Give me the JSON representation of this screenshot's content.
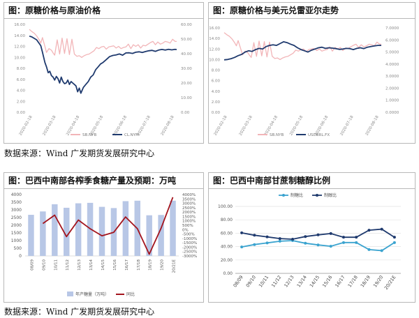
{
  "sources": {
    "top": "数据来源：Wind 广发期货发展研究中心",
    "bottom": "数据来源：Wind 广发期货发展研究中心"
  },
  "chart_data": [
    {
      "title": "图：原糖价格与原油价格",
      "type": "line",
      "x_ticks": [
        "2020-02-18",
        "2020-03-18",
        "2020-04-18",
        "2020-05-18",
        "2020-06-18",
        "2020-07-18",
        "2020-08-18"
      ],
      "y_left_ticks": [
        "0.00",
        "2.00",
        "4.00",
        "6.00",
        "8.00",
        "10.00",
        "12.00",
        "14.00",
        "16.00"
      ],
      "y_right_ticks": [
        "0.00",
        "10.00",
        "20.00",
        "30.00",
        "40.00",
        "50.00",
        "60.00"
      ],
      "ylim_left": [
        0,
        16
      ],
      "ylim_right": [
        0,
        60
      ],
      "series": [
        {
          "name": "SB.NYB",
          "axis": "left",
          "color": "#f2b5b8",
          "x": [
            0,
            3,
            6,
            9,
            12,
            14,
            16,
            19,
            21,
            24,
            27,
            29,
            31,
            34,
            37,
            40,
            43,
            46,
            49,
            52,
            55,
            58,
            61,
            64,
            67,
            70,
            73,
            76,
            79,
            82,
            85,
            88,
            91,
            94,
            97,
            100,
            103,
            106,
            109,
            112,
            115,
            118,
            121,
            124,
            127,
            130,
            133,
            136,
            139,
            142,
            145,
            148,
            151,
            154,
            157,
            160,
            163,
            166,
            169,
            172,
            175,
            178,
            180
          ],
          "values": [
            15.1,
            14.7,
            14.4,
            13.9,
            13.2,
            12.6,
            13.6,
            12.0,
            10.9,
            11.6,
            11.3,
            10.8,
            10.4,
            13.2,
            10.6,
            13.5,
            10.7,
            13.4,
            10.5,
            13.3,
            10.6,
            10.2,
            10.3,
            10.0,
            10.3,
            10.5,
            10.6,
            10.9,
            11.2,
            11.8,
            11.6,
            11.9,
            12.0,
            11.5,
            11.9,
            12.0,
            12.1,
            11.7,
            12.0,
            11.6,
            11.8,
            11.9,
            12.4,
            11.6,
            12.3,
            12.0,
            12.3,
            11.7,
            12.2,
            12.1,
            12.4,
            12.7,
            12.9,
            12.3,
            12.8,
            12.4,
            12.6,
            12.9,
            12.8,
            12.6,
            13.3,
            12.9,
            12.9
          ]
        },
        {
          "name": "CL.NYM",
          "axis": "right",
          "color": "#1f3a6e",
          "x": [
            0,
            3,
            6,
            9,
            12,
            14,
            16,
            19,
            21,
            23,
            25,
            27,
            29,
            31,
            33,
            35,
            37,
            39,
            41,
            43,
            45,
            47,
            49,
            51,
            53,
            55,
            57,
            59,
            61,
            63,
            66,
            69,
            72,
            75,
            78,
            81,
            84,
            87,
            90,
            94,
            98,
            102,
            106,
            110,
            114,
            118,
            122,
            126,
            130,
            134,
            138,
            142,
            146,
            150,
            154,
            158,
            162,
            166,
            170,
            174,
            178,
            180
          ],
          "values": [
            52,
            51.5,
            50.5,
            49.5,
            47,
            45.5,
            41,
            34,
            31,
            27,
            28,
            25,
            24,
            22,
            24.5,
            23,
            20,
            24,
            21,
            19.5,
            20,
            22,
            19,
            21,
            20,
            19,
            18,
            14,
            16.5,
            13,
            17,
            19,
            21,
            24,
            25.5,
            29,
            31,
            33,
            34,
            36,
            38,
            38.8,
            39.2,
            39.8,
            39,
            40.5,
            40.6,
            40.2,
            41,
            41.3,
            40.8,
            41.5,
            42,
            42.3,
            41.6,
            42.5,
            42.9,
            42.5,
            43,
            42.6,
            43,
            42.8
          ]
        }
      ]
    },
    {
      "title": "图：原糖价格与美元兑雷亚尔走势",
      "type": "line",
      "x_ticks": [
        "2020-02-18",
        "2020-03-18",
        "2020-04-18",
        "2020-05-18",
        "2020-06-18",
        "2020-07-18",
        "2020-08-18"
      ],
      "y_left_ticks": [
        "0.00",
        "2.00",
        "4.00",
        "6.00",
        "8.00",
        "10.00",
        "12.00",
        "14.00",
        "16.00"
      ],
      "y_right_ticks": [
        "0.0000",
        "1.0000",
        "2.0000",
        "3.0000",
        "4.0000",
        "5.0000",
        "6.0000",
        "7.0000"
      ],
      "ylim_left": [
        0,
        16
      ],
      "ylim_right": [
        0,
        7
      ],
      "series": [
        {
          "name": "SB.NYB",
          "axis": "left",
          "color": "#f2b5b8",
          "x": [
            0,
            3,
            6,
            9,
            12,
            14,
            16,
            19,
            21,
            24,
            27,
            29,
            31,
            34,
            37,
            40,
            43,
            46,
            49,
            52,
            55,
            58,
            61,
            64,
            67,
            70,
            73,
            76,
            79,
            82,
            85,
            88,
            91,
            94,
            97,
            100,
            103,
            106,
            109,
            112,
            115,
            118,
            121,
            124,
            127,
            130,
            133,
            136,
            139,
            142,
            145,
            148,
            151,
            154,
            157,
            160,
            163,
            166,
            169,
            172,
            175,
            178,
            180
          ],
          "values": [
            15.1,
            14.7,
            14.4,
            13.9,
            13.2,
            12.6,
            13.6,
            12.0,
            10.9,
            11.6,
            11.3,
            10.8,
            10.4,
            13.2,
            10.6,
            13.5,
            10.7,
            13.4,
            10.5,
            13.3,
            10.6,
            10.2,
            10.3,
            10.0,
            10.3,
            10.5,
            10.6,
            10.9,
            11.2,
            11.8,
            11.6,
            11.9,
            12.0,
            11.5,
            11.9,
            12.0,
            12.1,
            11.7,
            12.0,
            11.6,
            11.8,
            11.9,
            12.4,
            11.6,
            12.3,
            12.0,
            12.3,
            11.7,
            12.2,
            12.1,
            12.4,
            12.7,
            12.9,
            12.3,
            12.8,
            12.4,
            12.6,
            12.9,
            12.8,
            12.6,
            13.3,
            12.9,
            12.9
          ]
        },
        {
          "name": "USDBRL.FX",
          "axis": "right",
          "color": "#1f3a6e",
          "x": [
            0,
            4,
            8,
            12,
            16,
            20,
            24,
            28,
            32,
            36,
            40,
            44,
            48,
            52,
            56,
            60,
            64,
            68,
            72,
            76,
            80,
            84,
            88,
            92,
            96,
            100,
            104,
            108,
            112,
            116,
            120,
            124,
            128,
            132,
            136,
            140,
            144,
            148,
            152,
            156,
            160,
            164,
            168,
            172,
            176,
            180
          ],
          "values": [
            4.35,
            4.38,
            4.45,
            4.55,
            4.7,
            4.8,
            5.0,
            5.1,
            5.05,
            5.2,
            5.3,
            5.25,
            5.45,
            5.55,
            5.6,
            5.55,
            5.7,
            5.85,
            5.78,
            5.65,
            5.55,
            5.35,
            5.2,
            5.1,
            5.0,
            5.15,
            5.25,
            5.35,
            5.4,
            5.3,
            5.35,
            5.32,
            5.28,
            5.22,
            5.25,
            5.3,
            5.28,
            5.2,
            5.3,
            5.35,
            5.28,
            5.4,
            5.45,
            5.5,
            5.55,
            5.55
          ]
        }
      ]
    },
    {
      "title": "图：巴西中南部各榨季食糖产量及预期：万吨",
      "type": "bar",
      "categories": [
        "08/09",
        "09/10",
        "10/11",
        "11/12",
        "12/13",
        "13/14",
        "14/15",
        "15/16",
        "16/17",
        "17/18",
        "18/19",
        "19/20",
        "20/21E"
      ],
      "y_left_ticks": [
        "0",
        "500",
        "1000",
        "1500",
        "2000",
        "2500",
        "3000",
        "3500",
        "4000"
      ],
      "y_right_ticks": [
        "-3000%",
        "-2500%",
        "-2000%",
        "-1500%",
        "-1000%",
        "-500%",
        "0%",
        "500%",
        "1000%",
        "1500%",
        "2000%",
        "2500%",
        "3000%",
        "3500%",
        "4000%"
      ],
      "ylim_left": [
        0,
        4000
      ],
      "ylim_right": [
        -3000,
        4000
      ],
      "series": [
        {
          "name": "年产糖量（万吨）",
          "type": "bar",
          "axis": "left",
          "color": "#b8c7e6",
          "values": [
            2680,
            2900,
            3370,
            3140,
            3430,
            3460,
            3200,
            3120,
            3570,
            3600,
            2650,
            2670,
            3600
          ]
        },
        {
          "name": "同比",
          "type": "line",
          "axis": "right",
          "color": "#a3141d",
          "values": [
            null,
            700,
            1650,
            -800,
            1100,
            100,
            -700,
            -300,
            1450,
            100,
            -2800,
            150,
            3700
          ]
        }
      ]
    },
    {
      "title": "图：巴西中南部甘蔗制糖醇比例",
      "type": "line",
      "categories": [
        "08/09",
        "09/10",
        "10/11",
        "11/12",
        "12/13",
        "13/14",
        "14/15",
        "15/16",
        "16/17",
        "17/18",
        "18/19",
        "19/20",
        "20/21E"
      ],
      "y_ticks": [
        "0.00",
        "20.00",
        "40.00",
        "60.00",
        "80.00",
        "100.00"
      ],
      "ylim": [
        0,
        100
      ],
      "series": [
        {
          "name": "制糖比",
          "color": "#3aa3cf",
          "values": [
            39.5,
            43,
            45.5,
            48,
            49,
            45,
            42.5,
            40.5,
            46,
            46,
            35.5,
            34,
            46
          ]
        },
        {
          "name": "制醇比",
          "color": "#1f3a6e",
          "values": [
            60.5,
            57,
            54.5,
            52,
            51,
            55,
            57.5,
            59.5,
            54,
            54,
            64.5,
            66,
            54
          ]
        }
      ]
    }
  ]
}
